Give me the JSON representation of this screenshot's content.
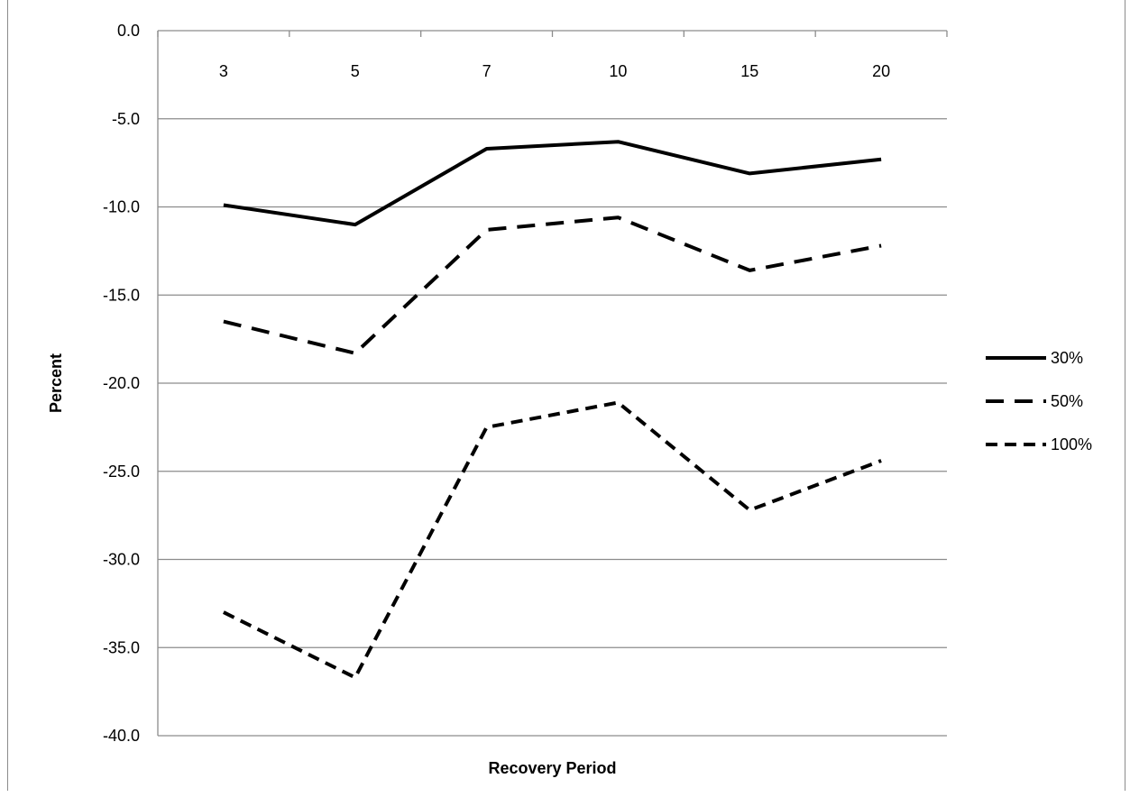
{
  "chart_data": {
    "type": "line",
    "title": "",
    "xlabel": "Recovery Period",
    "ylabel": "Percent",
    "categories": [
      "3",
      "5",
      "7",
      "10",
      "15",
      "20"
    ],
    "ylim": [
      -40,
      0
    ],
    "ytick_labels": [
      "0.0",
      "-5.0",
      "-10.0",
      "-15.0",
      "-20.0",
      "-25.0",
      "-30.0",
      "-35.0",
      "-40.0"
    ],
    "grid": true,
    "legend_position": "right",
    "series": [
      {
        "name": "30%",
        "style": "solid",
        "values": [
          -9.9,
          -11.0,
          -6.7,
          -6.3,
          -8.1,
          -7.3
        ]
      },
      {
        "name": "50%",
        "style": "long-dash",
        "values": [
          -16.5,
          -18.3,
          -11.3,
          -10.6,
          -13.6,
          -12.2
        ]
      },
      {
        "name": "100%",
        "style": "short-dash",
        "values": [
          -33.0,
          -36.7,
          -22.5,
          -21.1,
          -27.2,
          -24.4
        ]
      }
    ],
    "colors": {
      "lines": "#000000",
      "grid": "#8c8c8c",
      "axis": "#8c8c8c"
    }
  }
}
